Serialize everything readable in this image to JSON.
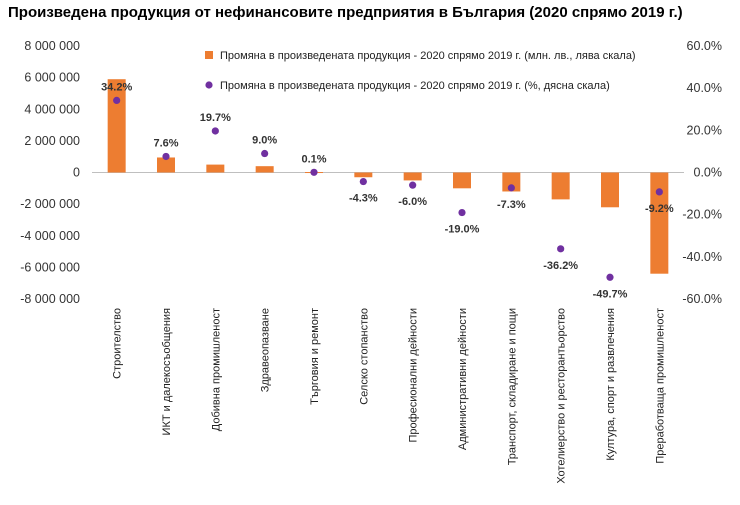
{
  "chart_data": {
    "type": "bar",
    "title": "Произведена продукция от нефинансовите предприятия в България (2020 спрямо 2019 г.)",
    "categories": [
      "Строителство",
      "ИКТ и далекосъобщения",
      "Добивна промишленост",
      "Здравеопазване",
      "Търговия и ремонт",
      "Селско стопанство",
      "Професионални дейности",
      "Административни дейности",
      "Транспорт, складиране и пощи",
      "Хотелиерство и ресторантьорство",
      "Култура, спорт и развлечения",
      "Преработваща промишленост"
    ],
    "series": [
      {
        "name": "Промяна в произведената продукция - 2020 спрямо 2019 г. (млн. лв., лява скала)",
        "type": "bar",
        "axis": "left",
        "color": "#ED7D31",
        "values": [
          5900000,
          950000,
          500000,
          400000,
          30000,
          -300000,
          -500000,
          -1000000,
          -1200000,
          -1700000,
          -2200000,
          -6400000
        ]
      },
      {
        "name": "Промяна в произведената продукция - 2020 спрямо 2019 г. (%, дясна скала)",
        "type": "scatter",
        "axis": "right",
        "color": "#7030A0",
        "values": [
          34.2,
          7.6,
          19.7,
          9.0,
          0.1,
          -4.3,
          -6.0,
          -19.0,
          -7.3,
          -36.2,
          -49.7,
          -9.2
        ],
        "labels": [
          "34.2%",
          "7.6%",
          "19.7%",
          "9.0%",
          "0.1%",
          "-4.3%",
          "-6.0%",
          "-19.0%",
          "-7.3%",
          "-36.2%",
          "-49.7%",
          "-9.2%"
        ]
      }
    ],
    "y_left": {
      "range": [
        -8000000,
        8000000
      ],
      "ticks": [
        "8 000 000",
        "6 000 000",
        "4 000 000",
        "2 000 000",
        "0",
        "-2 000 000",
        "-4 000 000",
        "-6 000 000",
        "-8 000 000"
      ]
    },
    "y_right": {
      "range": [
        -60,
        60
      ],
      "ticks": [
        "60.0%",
        "40.0%",
        "20.0%",
        "0.0%",
        "-20.0%",
        "-40.0%",
        "-60.0%"
      ]
    },
    "grid": false,
    "legend": "top-right"
  }
}
